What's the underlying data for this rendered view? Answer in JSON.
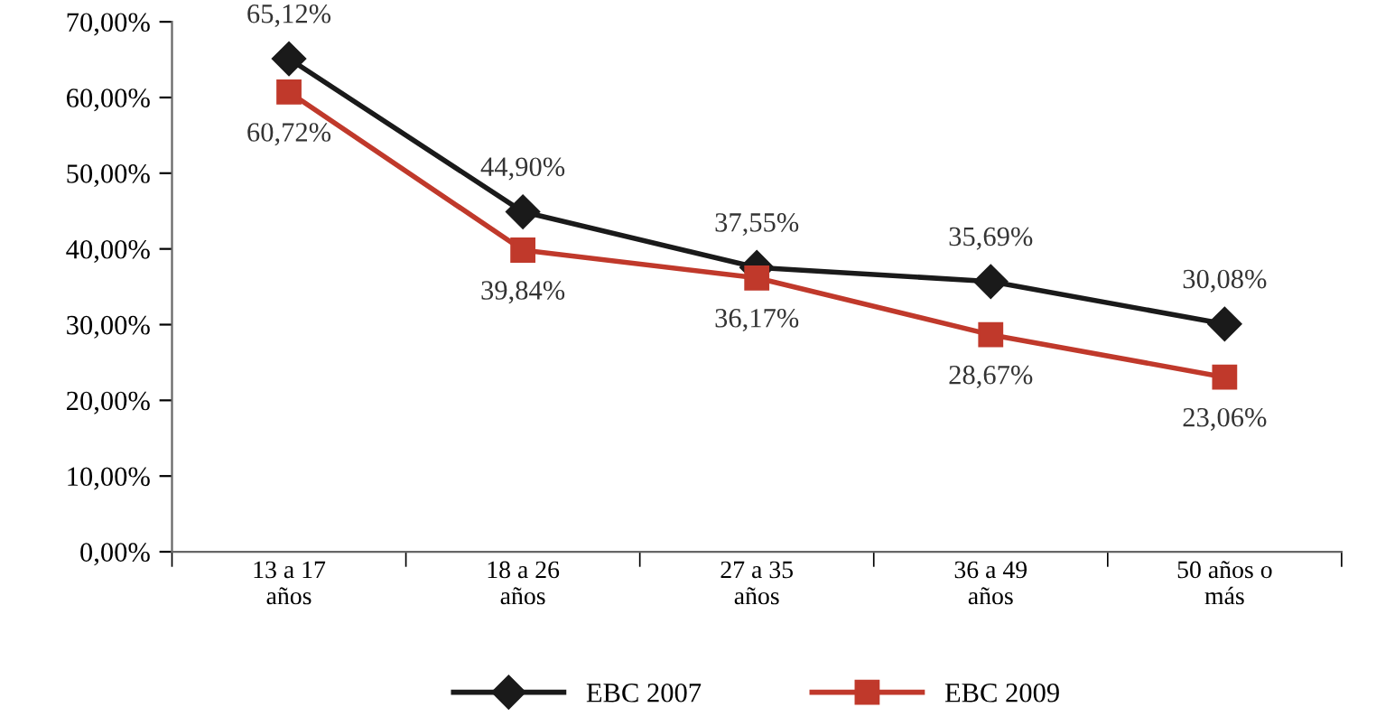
{
  "chart_data": {
    "type": "line",
    "categories": [
      "13 a 17\naños",
      "18 a 26\naños",
      "27 a 35\naños",
      "36 a 49\naños",
      "50 años o\nmás"
    ],
    "series": [
      {
        "name": "EBC 2007",
        "color": "#1a1a1a",
        "marker": "diamond",
        "values": [
          65.12,
          44.9,
          37.55,
          35.69,
          30.08
        ],
        "value_labels": [
          "65,12%",
          "44,90%",
          "37,55%",
          "35,69%",
          "30,08%"
        ]
      },
      {
        "name": "EBC 2009",
        "color": "#c0392b",
        "marker": "square",
        "values": [
          60.72,
          39.84,
          36.17,
          28.67,
          23.06
        ],
        "value_labels": [
          "60,72%",
          "39,84%",
          "36,17%",
          "28,67%",
          "23,06%"
        ]
      }
    ],
    "ylim": [
      0,
      70
    ],
    "yticks": [
      {
        "value": 0,
        "label": "0,00%"
      },
      {
        "value": 10,
        "label": "10,00%"
      },
      {
        "value": 20,
        "label": "20,00%"
      },
      {
        "value": 30,
        "label": "30,00%"
      },
      {
        "value": 40,
        "label": "40,00%"
      },
      {
        "value": 50,
        "label": "50,00%"
      },
      {
        "value": 60,
        "label": "60,00%"
      },
      {
        "value": 70,
        "label": "70,00%"
      }
    ],
    "grid": false,
    "legend": "bottom",
    "line_style": "solid"
  }
}
